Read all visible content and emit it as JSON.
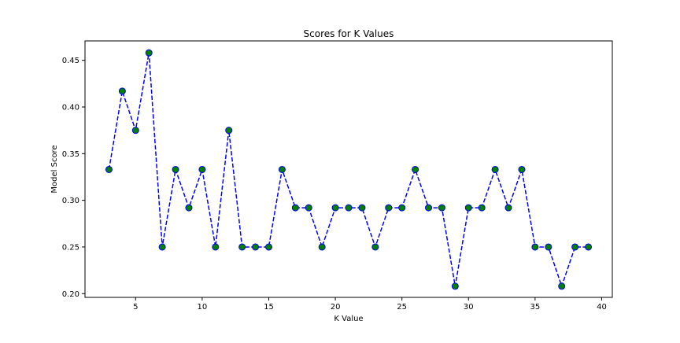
{
  "chart_data": {
    "type": "line",
    "title": "Scores for K Values",
    "xlabel": "K Value",
    "ylabel": "Model Score",
    "xlim": [
      1.2,
      40.8
    ],
    "ylim": [
      0.196,
      0.4708
    ],
    "x_ticks": [
      5,
      10,
      15,
      20,
      25,
      30,
      35,
      40
    ],
    "x_tick_labels": [
      "5",
      "10",
      "15",
      "20",
      "25",
      "30",
      "35",
      "40"
    ],
    "y_ticks": [
      0.2,
      0.25,
      0.3,
      0.35,
      0.4,
      0.45
    ],
    "y_tick_labels": [
      "0.20",
      "0.25",
      "0.30",
      "0.35",
      "0.40",
      "0.45"
    ],
    "grid": false,
    "series": [
      {
        "line_color": "#0000ff",
        "line_style": "dashed",
        "marker": "circle",
        "marker_face_color": "#008000",
        "marker_edge_color": "#0000ff",
        "x": [
          3,
          4,
          5,
          6,
          7,
          8,
          9,
          10,
          11,
          12,
          13,
          14,
          15,
          16,
          17,
          18,
          19,
          20,
          21,
          22,
          23,
          24,
          25,
          26,
          27,
          28,
          29,
          30,
          31,
          32,
          33,
          34,
          35,
          36,
          37,
          38,
          39
        ],
        "y": [
          0.333,
          0.417,
          0.375,
          0.458,
          0.25,
          0.333,
          0.292,
          0.333,
          0.25,
          0.375,
          0.25,
          0.25,
          0.25,
          0.333,
          0.292,
          0.292,
          0.25,
          0.292,
          0.292,
          0.292,
          0.25,
          0.292,
          0.292,
          0.333,
          0.292,
          0.292,
          0.208,
          0.292,
          0.292,
          0.333,
          0.292,
          0.333,
          0.25,
          0.25,
          0.208,
          0.25,
          0.25
        ]
      }
    ]
  }
}
